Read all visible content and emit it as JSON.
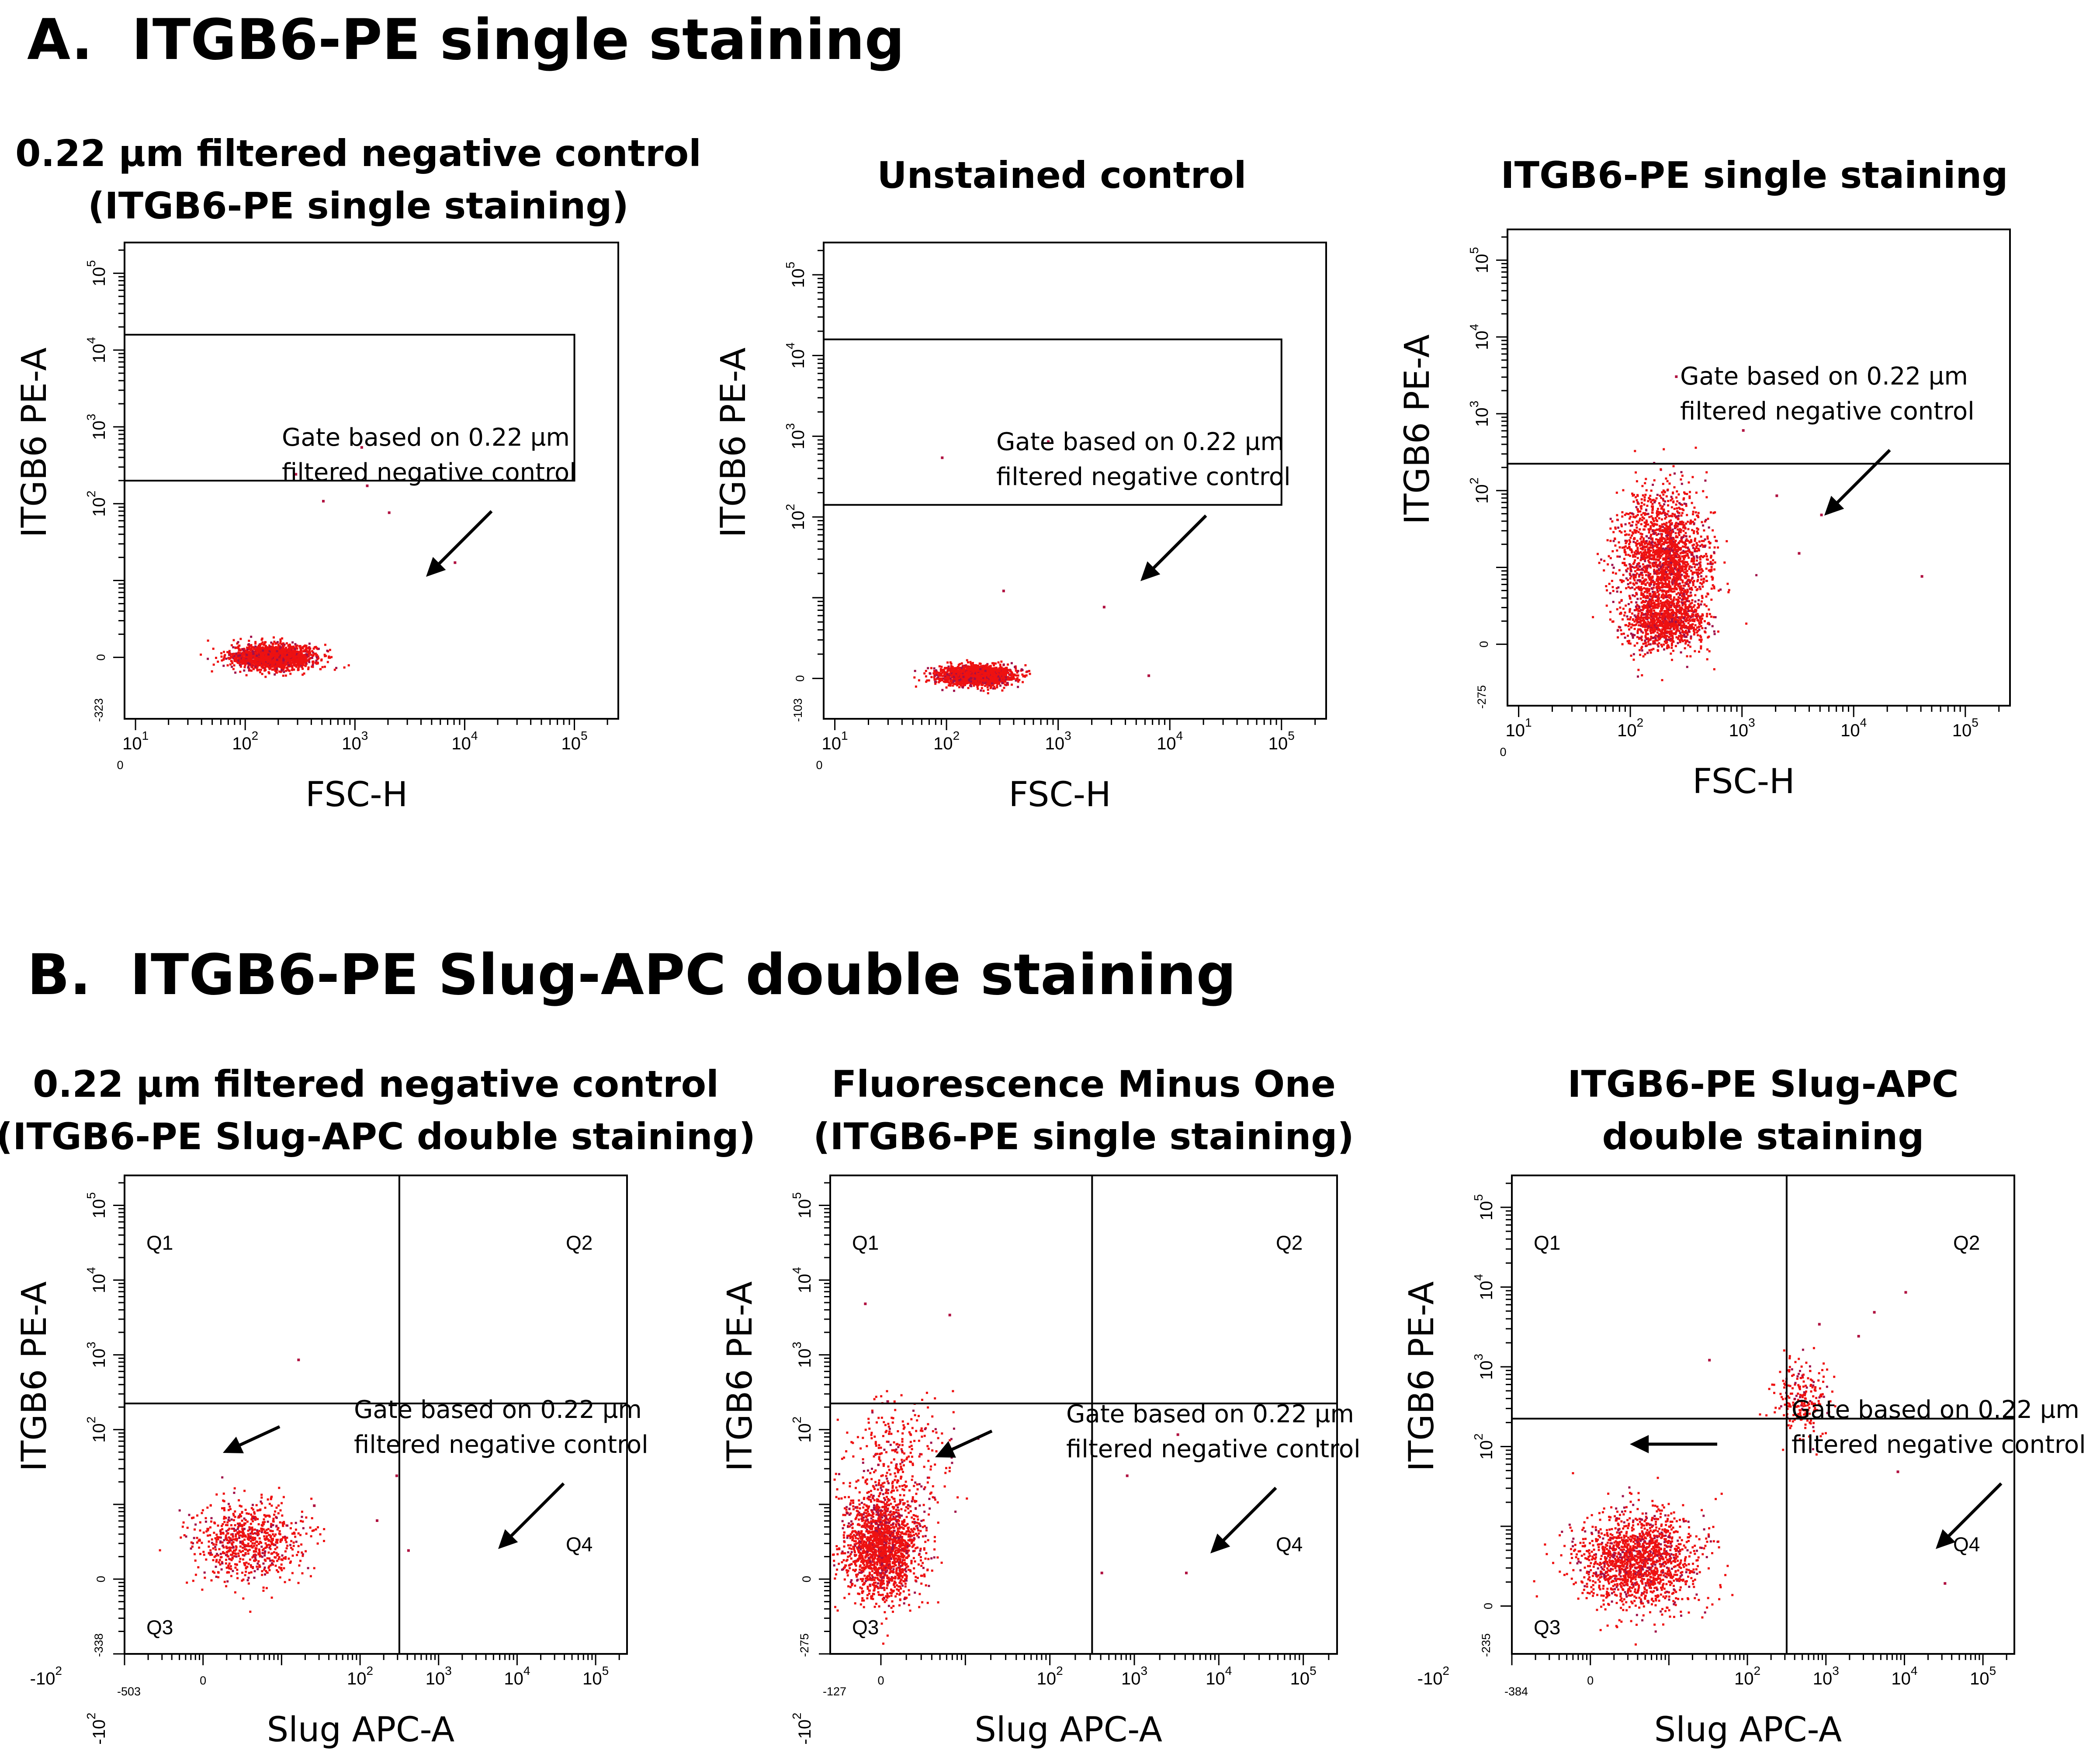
{
  "section_a": {
    "title": "A.  ITGB6-PE single staining"
  },
  "section_b": {
    "title": "B.  ITGB6-PE Slug-APC double staining"
  },
  "chart_data": [
    {
      "type": "scatter",
      "title": [
        "0.22 µm filtered negative control",
        "(ITGB6-PE single staining)"
      ],
      "xlabel": "FSC-H",
      "ylabel": "ITGB6 PE-A",
      "x_ticks": [
        "0",
        "10^1",
        "10^2",
        "10^3",
        "10^4",
        "10^5"
      ],
      "y_ticks": [
        "-323",
        "0",
        "10^2",
        "10^3",
        "10^4",
        "10^5"
      ],
      "xlim_log": [
        0.9,
        5.4
      ],
      "ylim_log": [
        -0.8,
        5.4
      ],
      "gate": {
        "kind": "rectangle",
        "x_log_max": 5.0,
        "y_log_min": 2.3,
        "y_log_max": 4.2
      },
      "annotation": [
        "Gate based on 0.22 µm",
        "filtered negative control"
      ],
      "clusters": [
        {
          "center": [
            2.25,
            0.02
          ],
          "spread": [
            0.38,
            0.16
          ],
          "count": 1800
        }
      ],
      "outliers": [
        [
          3.05,
          2.75
        ],
        [
          3.1,
          2.25
        ],
        [
          2.7,
          2.05
        ],
        [
          3.9,
          1.25
        ],
        [
          2.45,
          2.4
        ],
        [
          3.3,
          1.9
        ]
      ]
    },
    {
      "type": "scatter",
      "title": [
        "Unstained control"
      ],
      "xlabel": "FSC-H",
      "ylabel": "ITGB6 PE-A",
      "x_ticks": [
        "0",
        "10^1",
        "10^2",
        "10^3",
        "10^4",
        "10^5"
      ],
      "y_ticks": [
        "-103",
        "0",
        "10^2",
        "10^3",
        "10^4",
        "10^5"
      ],
      "xlim_log": [
        0.9,
        5.4
      ],
      "ylim_log": [
        -0.5,
        5.4
      ],
      "gate": {
        "kind": "rectangle",
        "x_log_max": 5.0,
        "y_log_min": 2.15,
        "y_log_max": 4.2
      },
      "annotation": [
        "Gate based on 0.22 µm",
        "filtered negative control"
      ],
      "clusters": [
        {
          "center": [
            2.25,
            0.05
          ],
          "spread": [
            0.33,
            0.12
          ],
          "count": 1800
        }
      ],
      "outliers": [
        [
          1.95,
          2.75
        ],
        [
          2.9,
          2.95
        ],
        [
          3.4,
          0.9
        ],
        [
          3.8,
          0.05
        ],
        [
          2.5,
          1.1
        ]
      ]
    },
    {
      "type": "scatter",
      "title": [
        "ITGB6-PE single staining"
      ],
      "xlabel": "FSC-H",
      "ylabel": "ITGB6 PE-A",
      "x_ticks": [
        "0",
        "10^1",
        "10^2",
        "10^3",
        "10^4",
        "10^5"
      ],
      "y_ticks": [
        "-275",
        "0",
        "10^2",
        "10^3",
        "10^4",
        "10^5"
      ],
      "xlim_log": [
        0.9,
        5.4
      ],
      "ylim_log": [
        -0.8,
        5.4
      ],
      "gate": {
        "kind": "horizontal",
        "y_log": 2.35
      },
      "annotation": [
        "Gate based on 0.22 µm",
        "filtered negative control"
      ],
      "clusters": [
        {
          "center": [
            2.3,
            1.1
          ],
          "spread": [
            0.4,
            0.9
          ],
          "count": 2000
        },
        {
          "center": [
            2.3,
            0.3
          ],
          "spread": [
            0.35,
            0.35
          ],
          "count": 900
        }
      ],
      "outliers": [
        [
          2.4,
          3.5
        ],
        [
          3.7,
          1.7
        ],
        [
          4.6,
          0.9
        ],
        [
          3.3,
          1.95
        ],
        [
          3.0,
          2.8
        ],
        [
          3.5,
          1.2
        ]
      ]
    },
    {
      "type": "scatter",
      "title": [
        "0.22 µm filtered negative control",
        "(ITGB6-PE Slug-APC double staining)"
      ],
      "xlabel": "Slug APC-A",
      "ylabel": "ITGB6 PE-A",
      "x_ticks": [
        "-503",
        "-10^2",
        "0",
        "10^2",
        "10^3",
        "10^4",
        "10^5"
      ],
      "y_ticks": [
        "-338",
        "-10^2",
        "0",
        "10^2",
        "10^3",
        "10^4",
        "10^5"
      ],
      "xlim_log": [
        -1.0,
        5.4
      ],
      "ylim_log": [
        -1.0,
        5.4
      ],
      "quadrants": {
        "x_log": 2.5,
        "y_log": 2.35,
        "labels": [
          "Q1",
          "Q2",
          "Q3",
          "Q4"
        ]
      },
      "annotation": [
        "Gate based on 0.22 µm",
        "filtered negative control"
      ],
      "clusters": [
        {
          "center": [
            0.55,
            0.5
          ],
          "spread": [
            0.7,
            0.55
          ],
          "count": 750
        }
      ],
      "outliers": [
        [
          1.2,
          2.95
        ],
        [
          2.2,
          0.8
        ],
        [
          2.6,
          0.4
        ],
        [
          1.4,
          1.0
        ],
        [
          2.45,
          1.4
        ]
      ]
    },
    {
      "type": "scatter",
      "title": [
        "Fluorescence Minus One",
        "(ITGB6-PE single staining)"
      ],
      "xlabel": "Slug APC-A",
      "ylabel": "ITGB6 PE-A",
      "x_ticks": [
        "-127",
        "0",
        "10^2",
        "10^3",
        "10^4",
        "10^5"
      ],
      "y_ticks": [
        "-275",
        "-10^2",
        "0",
        "10^2",
        "10^3",
        "10^4",
        "10^5"
      ],
      "xlim_log": [
        -0.6,
        5.4
      ],
      "ylim_log": [
        -1.0,
        5.4
      ],
      "quadrants": {
        "x_log": 2.5,
        "y_log": 2.35,
        "labels": [
          "Q1",
          "Q2",
          "Q3",
          "Q4"
        ]
      },
      "annotation": [
        "Gate based on 0.22 µm",
        "filtered negative control"
      ],
      "clusters": [
        {
          "center": [
            0.0,
            0.45
          ],
          "spread": [
            0.45,
            0.7
          ],
          "count": 1800
        },
        {
          "center": [
            0.2,
            1.6
          ],
          "spread": [
            0.6,
            0.8
          ],
          "count": 300
        }
      ],
      "outliers": [
        [
          -0.2,
          3.7
        ],
        [
          0.8,
          3.55
        ],
        [
          3.5,
          1.95
        ],
        [
          3.6,
          0.1
        ],
        [
          2.9,
          1.4
        ],
        [
          2.6,
          0.1
        ]
      ]
    },
    {
      "type": "scatter",
      "title": [
        "ITGB6-PE Slug-APC",
        "double staining"
      ],
      "xlabel": "Slug APC-A",
      "ylabel": "ITGB6 PE-A",
      "x_ticks": [
        "-384",
        "-10^2",
        "0",
        "10^2",
        "10^3",
        "10^4",
        "10^5"
      ],
      "y_ticks": [
        "-235",
        "0",
        "10^2",
        "10^3",
        "10^4",
        "10^5"
      ],
      "xlim_log": [
        -1.0,
        5.4
      ],
      "ylim_log": [
        -0.6,
        5.4
      ],
      "quadrants": {
        "x_log": 2.5,
        "y_log": 2.35,
        "labels": [
          "Q1",
          "Q2",
          "Q3",
          "Q4"
        ]
      },
      "annotation": [
        "Gate based on 0.22 µm",
        "filtered negative control"
      ],
      "clusters": [
        {
          "center": [
            0.6,
            0.6
          ],
          "spread": [
            0.75,
            0.6
          ],
          "count": 1600
        },
        {
          "center": [
            2.7,
            2.6
          ],
          "spread": [
            0.35,
            0.45
          ],
          "count": 220
        }
      ],
      "outliers": [
        [
          4.0,
          3.95
        ],
        [
          3.6,
          3.7
        ],
        [
          3.4,
          3.4
        ],
        [
          4.5,
          0.3
        ],
        [
          3.9,
          1.7
        ],
        [
          1.5,
          3.1
        ],
        [
          2.9,
          3.55
        ]
      ]
    }
  ]
}
